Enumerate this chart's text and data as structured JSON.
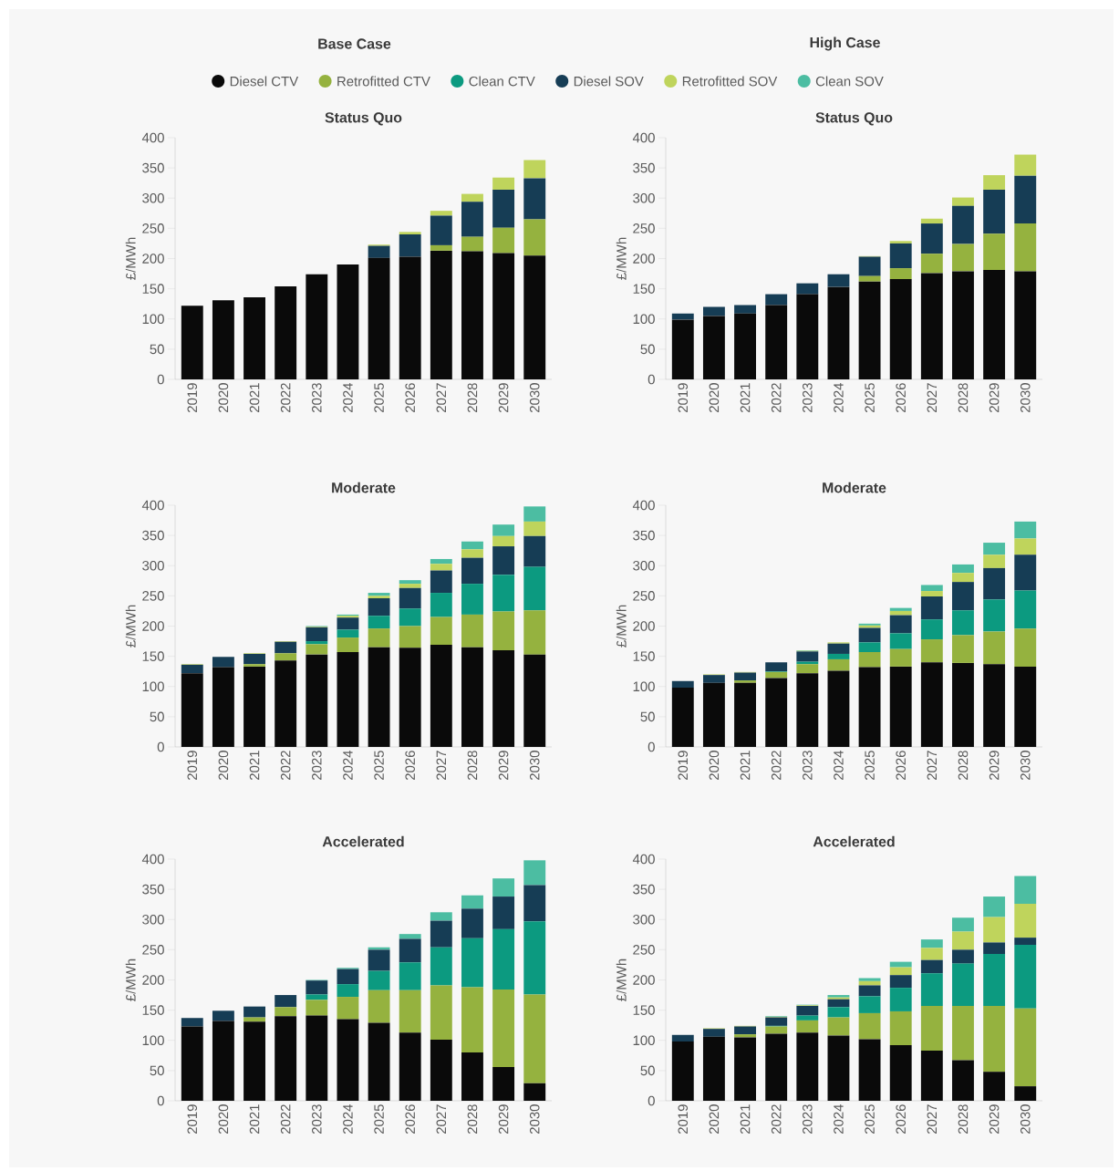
{
  "chart_data": [
    {
      "type": "bar",
      "title": "Status Quo",
      "annotations": [
        "Base Case"
      ],
      "ylabel": "£/MWh",
      "stacked": true,
      "legend": "top",
      "categories": [
        "2019",
        "2020",
        "2021",
        "2022",
        "2023",
        "2024",
        "2025",
        "2026",
        "2027",
        "2028",
        "2029",
        "2030"
      ],
      "ylim": [
        0,
        400
      ],
      "yticks": [
        0,
        50,
        100,
        150,
        200,
        250,
        300,
        350,
        400
      ],
      "series": [
        {
          "name": "Diesel CTV",
          "color": "#0a0a0a",
          "values": [
            122,
            131,
            136,
            154,
            174,
            190,
            201,
            203,
            213,
            212,
            209,
            205
          ]
        },
        {
          "name": "Retrofitted CTV",
          "color": "#95b23f",
          "values": [
            0,
            0,
            0,
            0,
            0,
            0,
            0,
            0,
            9,
            24,
            42,
            60
          ]
        },
        {
          "name": "Clean CTV",
          "color": "#0c9a80",
          "values": [
            0,
            0,
            0,
            0,
            0,
            0,
            0,
            0,
            0,
            0,
            0,
            0
          ]
        },
        {
          "name": "Diesel SOV",
          "color": "#163d55",
          "values": [
            0,
            0,
            0,
            0,
            0,
            0,
            20,
            37,
            49,
            58,
            63,
            68
          ]
        },
        {
          "name": "Retrofitted SOV",
          "color": "#bfd45c",
          "values": [
            0,
            0,
            0,
            0,
            0,
            0,
            2,
            4,
            8,
            13,
            20,
            30
          ]
        },
        {
          "name": "Clean SOV",
          "color": "#4cbda2",
          "values": [
            0,
            0,
            0,
            0,
            0,
            0,
            0,
            0,
            0,
            0,
            0,
            0
          ]
        }
      ]
    },
    {
      "type": "bar",
      "title": "Status Quo",
      "annotations": [
        "High Case"
      ],
      "ylabel": "£/MWh",
      "stacked": true,
      "categories": [
        "2019",
        "2020",
        "2021",
        "2022",
        "2023",
        "2024",
        "2025",
        "2026",
        "2027",
        "2028",
        "2029",
        "2030"
      ],
      "ylim": [
        0,
        400
      ],
      "yticks": [
        0,
        50,
        100,
        150,
        200,
        250,
        300,
        350,
        400
      ],
      "series": [
        {
          "color": "#0a0a0a",
          "values": [
            99,
            105,
            109,
            123,
            141,
            153,
            162,
            166,
            176,
            179,
            181,
            179
          ]
        },
        {
          "color": "#95b23f",
          "values": [
            0,
            0,
            0,
            0,
            0,
            0,
            9,
            18,
            32,
            45,
            60,
            79
          ]
        },
        {
          "color": "#0c9a80",
          "values": [
            0,
            0,
            0,
            0,
            0,
            0,
            0,
            0,
            0,
            0,
            0,
            0
          ]
        },
        {
          "color": "#163d55",
          "values": [
            10,
            15,
            14,
            18,
            18,
            21,
            32,
            41,
            50,
            63,
            73,
            79
          ]
        },
        {
          "color": "#bfd45c",
          "values": [
            0,
            0,
            0,
            0,
            0,
            0,
            1,
            4,
            8,
            14,
            24,
            35
          ]
        },
        {
          "color": "#4cbda2",
          "values": [
            0,
            0,
            0,
            0,
            0,
            0,
            0,
            0,
            0,
            0,
            0,
            0
          ]
        }
      ]
    },
    {
      "type": "bar",
      "title": "Moderate",
      "ylabel": "£/MWh",
      "stacked": true,
      "categories": [
        "2019",
        "2020",
        "2021",
        "2022",
        "2023",
        "2024",
        "2025",
        "2026",
        "2027",
        "2028",
        "2029",
        "2030"
      ],
      "ylim": [
        0,
        400
      ],
      "yticks": [
        0,
        50,
        100,
        150,
        200,
        250,
        300,
        350,
        400
      ],
      "series": [
        {
          "color": "#0a0a0a",
          "values": [
            122,
            132,
            133,
            143,
            153,
            157,
            165,
            164,
            169,
            165,
            160,
            153
          ]
        },
        {
          "color": "#95b23f",
          "values": [
            0,
            0,
            4,
            12,
            17,
            24,
            31,
            36,
            46,
            54,
            64,
            73
          ]
        },
        {
          "color": "#0c9a80",
          "values": [
            0,
            0,
            0,
            null,
            5,
            13,
            21,
            29,
            40,
            51,
            61,
            72
          ]
        },
        {
          "color": "#163d55",
          "values": [
            14,
            17,
            17,
            19,
            23,
            20,
            29,
            34,
            37,
            43,
            47,
            51
          ]
        },
        {
          "color": "#bfd45c",
          "values": [
            1,
            null,
            1,
            1,
            1,
            3,
            4,
            7,
            11,
            14,
            17,
            24
          ]
        },
        {
          "color": "#4cbda2",
          "values": [
            0,
            0,
            0,
            0,
            1,
            2,
            5,
            6,
            8,
            13,
            19,
            25
          ]
        }
      ]
    },
    {
      "type": "bar",
      "title": "Moderate",
      "ylabel": "£/MWh",
      "stacked": true,
      "categories": [
        "2019",
        "2020",
        "2021",
        "2022",
        "2023",
        "2024",
        "2025",
        "2026",
        "2027",
        "2028",
        "2029",
        "2030"
      ],
      "ylim": [
        0,
        400
      ],
      "yticks": [
        0,
        50,
        100,
        150,
        200,
        250,
        300,
        350,
        400
      ],
      "series": [
        {
          "color": "#0a0a0a",
          "values": [
            98,
            106,
            106,
            114,
            122,
            126,
            132,
            133,
            140,
            139,
            137,
            133
          ]
        },
        {
          "color": "#95b23f",
          "values": [
            0,
            0,
            4,
            10,
            15,
            19,
            25,
            29,
            38,
            46,
            54,
            63
          ]
        },
        {
          "color": "#0c9a80",
          "values": [
            0,
            0,
            0,
            1,
            4,
            9,
            16,
            26,
            33,
            41,
            53,
            63
          ]
        },
        {
          "color": "#163d55",
          "values": [
            11,
            13,
            13,
            15,
            17,
            17,
            24,
            30,
            38,
            47,
            52,
            59
          ]
        },
        {
          "color": "#bfd45c",
          "values": [
            0,
            1,
            1,
            null,
            1,
            2,
            4,
            7,
            9,
            15,
            22,
            27
          ]
        },
        {
          "color": "#4cbda2",
          "values": [
            0,
            0,
            0,
            0,
            1,
            null,
            3,
            5,
            10,
            14,
            20,
            28
          ]
        }
      ]
    },
    {
      "type": "bar",
      "title": "Accelerated",
      "ylabel": "£/MWh",
      "stacked": true,
      "categories": [
        "2019",
        "2020",
        "2021",
        "2022",
        "2023",
        "2024",
        "2025",
        "2026",
        "2027",
        "2028",
        "2029",
        "2030"
      ],
      "ylim": [
        0,
        400
      ],
      "yticks": [
        0,
        50,
        100,
        150,
        200,
        250,
        300,
        350,
        400
      ],
      "series": [
        {
          "color": "#0a0a0a",
          "values": [
            123,
            132,
            131,
            140,
            141,
            135,
            129,
            113,
            101,
            80,
            56,
            29
          ]
        },
        {
          "color": "#95b23f",
          "values": [
            0,
            0,
            7,
            15,
            26,
            37,
            54,
            70,
            90,
            108,
            128,
            147
          ]
        },
        {
          "color": "#0c9a80",
          "values": [
            0,
            0,
            0,
            0,
            9,
            21,
            32,
            46,
            63,
            81,
            100,
            121
          ]
        },
        {
          "color": "#163d55",
          "values": [
            14,
            17,
            18,
            20,
            23,
            25,
            35,
            39,
            44,
            49,
            54,
            60
          ]
        },
        {
          "color": "#bfd45c",
          "values": [
            0,
            0,
            0,
            0,
            0,
            0,
            0,
            0,
            0,
            0,
            0,
            0
          ]
        },
        {
          "color": "#4cbda2",
          "values": [
            0,
            0,
            0,
            0,
            1,
            2,
            4,
            8,
            14,
            22,
            30,
            41
          ]
        }
      ]
    },
    {
      "type": "bar",
      "title": "Accelerated",
      "ylabel": "£/MWh",
      "stacked": true,
      "categories": [
        "2019",
        "2020",
        "2021",
        "2022",
        "2023",
        "2024",
        "2025",
        "2026",
        "2027",
        "2028",
        "2029",
        "2030"
      ],
      "ylim": [
        0,
        400
      ],
      "yticks": [
        0,
        50,
        100,
        150,
        200,
        250,
        300,
        350,
        400
      ],
      "series": [
        {
          "color": "#0a0a0a",
          "values": [
            98,
            106,
            105,
            111,
            113,
            108,
            102,
            92,
            83,
            67,
            48,
            24
          ]
        },
        {
          "color": "#95b23f",
          "values": [
            0,
            0,
            5,
            12,
            20,
            30,
            43,
            56,
            74,
            90,
            109,
            129
          ]
        },
        {
          "color": "#0c9a80",
          "values": [
            0,
            0,
            0,
            1,
            8,
            17,
            28,
            39,
            54,
            70,
            86,
            105
          ]
        },
        {
          "color": "#163d55",
          "values": [
            11,
            13,
            13,
            14,
            16,
            13,
            18,
            21,
            22,
            23,
            19,
            12
          ]
        },
        {
          "color": "#bfd45c",
          "values": [
            0,
            1,
            1,
            1,
            1,
            3,
            7,
            13,
            20,
            30,
            42,
            56
          ]
        },
        {
          "color": "#4cbda2",
          "values": [
            0,
            0,
            0,
            1,
            1,
            4,
            5,
            9,
            14,
            23,
            34,
            46
          ]
        }
      ]
    }
  ]
}
